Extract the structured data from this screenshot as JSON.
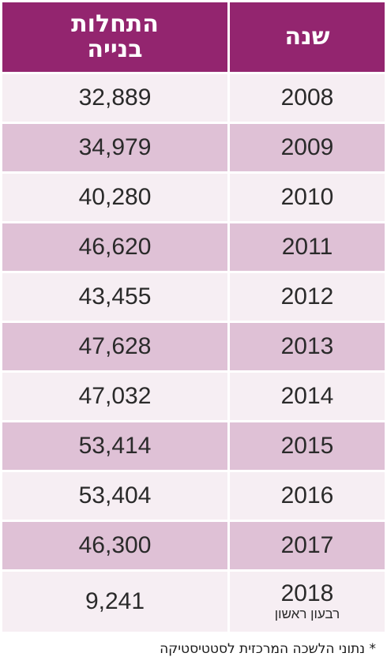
{
  "colors": {
    "header_bg": "#93256f",
    "row_light": "#f6eef3",
    "row_dark": "#dfc1d6",
    "text": "#2a2a2a"
  },
  "chart_data": {
    "type": "table",
    "columns": [
      "שנה",
      "התחלות בנייה"
    ],
    "rows": [
      {
        "year": "2008",
        "value": "32,889"
      },
      {
        "year": "2009",
        "value": "34,979"
      },
      {
        "year": "2010",
        "value": "40,280"
      },
      {
        "year": "2011",
        "value": "46,620"
      },
      {
        "year": "2012",
        "value": "43,455"
      },
      {
        "year": "2013",
        "value": "47,628"
      },
      {
        "year": "2014",
        "value": "47,032"
      },
      {
        "year": "2015",
        "value": "53,414"
      },
      {
        "year": "2016",
        "value": "53,404"
      },
      {
        "year": "2017",
        "value": "46,300"
      },
      {
        "year": "2018",
        "note": "רבעון ראשון",
        "value": "9,241"
      }
    ],
    "footnote": "* נתוני הלשכה המרכזית לסטטיסטיקה"
  }
}
